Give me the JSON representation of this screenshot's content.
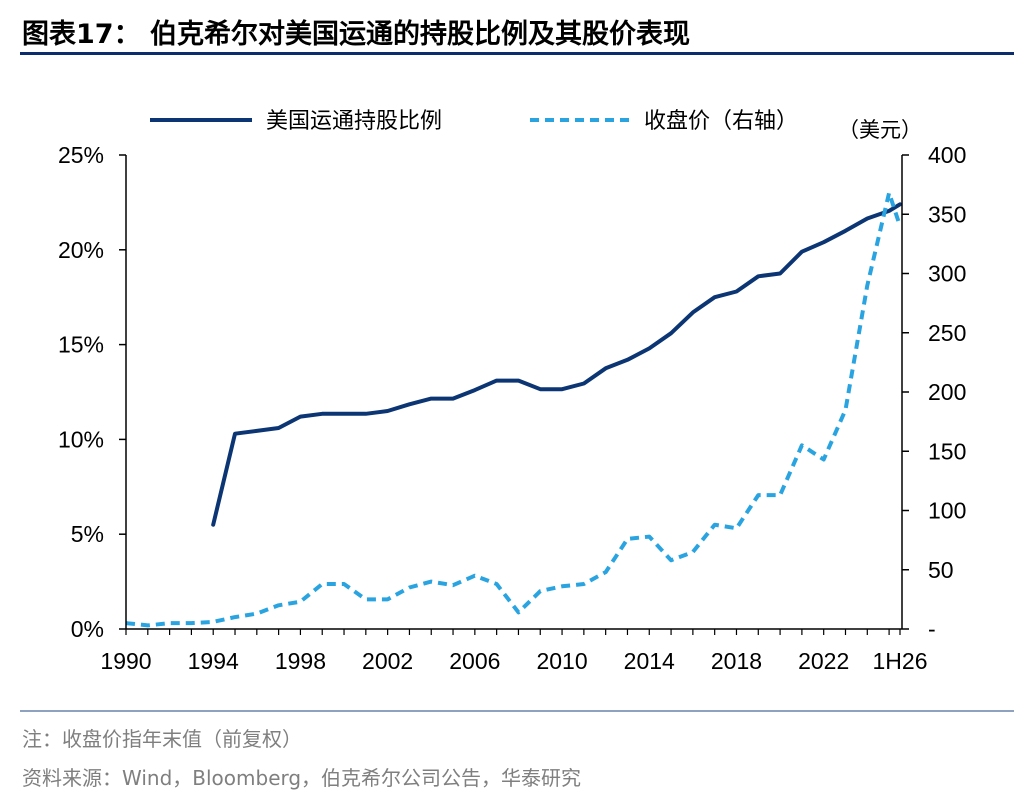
{
  "figure": {
    "title": "图表17：  伯克希尔对美国运通的持股比例及其股价表现",
    "note": "注：收盘价指年末值（前复权）",
    "source": "资料来源：Wind，Bloomberg，伯克希尔公司公告，华泰研究"
  },
  "colors": {
    "holding": "#0c3574",
    "price": "#2aa4e0",
    "axis": "#000000",
    "rule": "#0c2d6b"
  },
  "chart_data": {
    "type": "line",
    "title": "",
    "xlabel": "",
    "x_ticks": [
      "1990",
      "1994",
      "1998",
      "2002",
      "2006",
      "2010",
      "2014",
      "2018",
      "2022",
      "1H26"
    ],
    "x": [
      "1990",
      "1991",
      "1992",
      "1993",
      "1994",
      "1995",
      "1996",
      "1997",
      "1998",
      "1999",
      "2000",
      "2001",
      "2002",
      "2003",
      "2004",
      "2005",
      "2006",
      "2007",
      "2008",
      "2009",
      "2010",
      "2011",
      "2012",
      "2013",
      "2014",
      "2015",
      "2016",
      "2017",
      "2018",
      "2019",
      "2020",
      "2021",
      "2022",
      "2023",
      "2024",
      "2025",
      "1H26"
    ],
    "y_left": {
      "ticks": [
        "0%",
        "5%",
        "10%",
        "15%",
        "20%",
        "25%"
      ],
      "lim": [
        0,
        25
      ],
      "unit": "%"
    },
    "y_right": {
      "ticks": [
        "-",
        "50",
        "100",
        "150",
        "200",
        "250",
        "300",
        "350",
        "400"
      ],
      "lim": [
        0,
        400
      ],
      "unit_label": "（美元）"
    },
    "legend": {
      "placement": "top"
    },
    "series": [
      {
        "name": "美国运通持股比例",
        "axis": "left",
        "style": "solid",
        "values": [
          null,
          null,
          null,
          null,
          5.5,
          10.3,
          10.45,
          10.6,
          11.2,
          11.35,
          11.35,
          11.35,
          11.5,
          11.85,
          12.15,
          12.15,
          12.6,
          13.1,
          13.1,
          12.65,
          12.65,
          12.95,
          13.75,
          14.2,
          14.8,
          15.6,
          16.7,
          17.5,
          17.8,
          18.6,
          18.75,
          19.9,
          20.4,
          21.0,
          21.65,
          22.05,
          22.4
        ]
      },
      {
        "name": "收盘价（右轴）",
        "axis": "right",
        "style": "dashed",
        "values": [
          5,
          3,
          5,
          5,
          6,
          10,
          13,
          20,
          23,
          38,
          38,
          25,
          25,
          35,
          40,
          37,
          45,
          38,
          14,
          32,
          36,
          38,
          48,
          76,
          78,
          58,
          65,
          88,
          85,
          113,
          113,
          155,
          143,
          185,
          290,
          368,
          340
        ]
      }
    ]
  }
}
